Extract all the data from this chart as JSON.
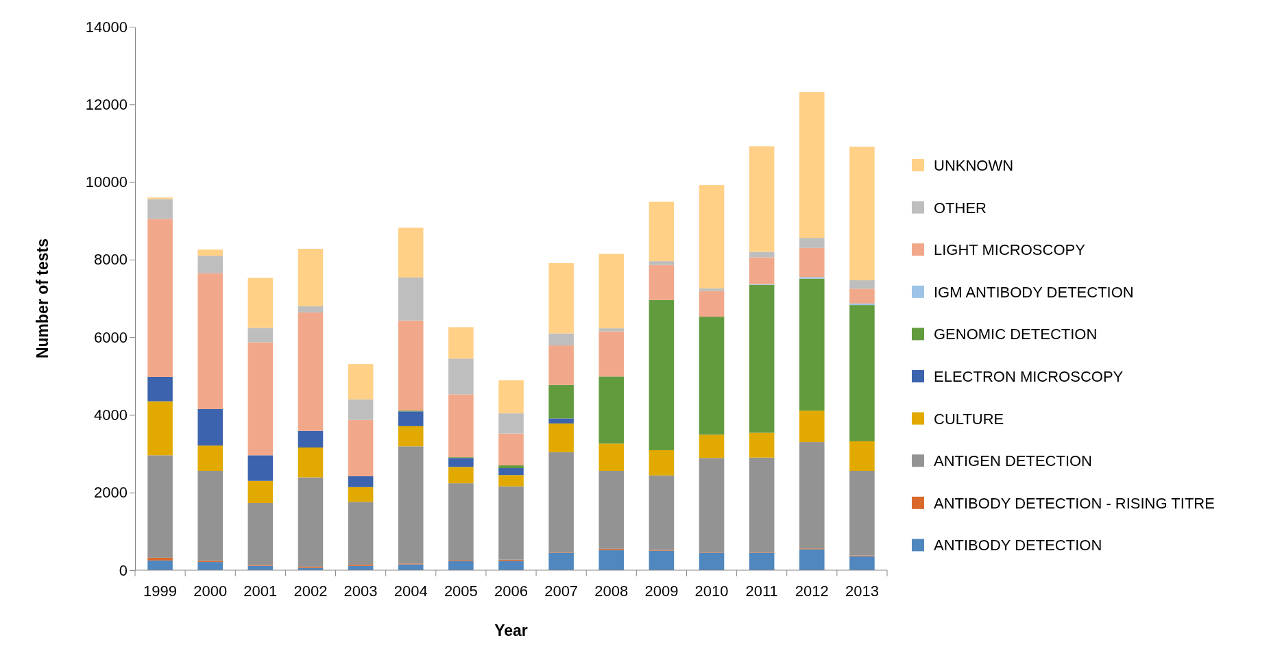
{
  "chart_data": {
    "type": "bar",
    "stacked": true,
    "xlabel": "Year",
    "ylabel": "Number of tests",
    "categories": [
      "1999",
      "2000",
      "2001",
      "2002",
      "2003",
      "2004",
      "2005",
      "2006",
      "2007",
      "2008",
      "2009",
      "2010",
      "2011",
      "2012",
      "2013"
    ],
    "ylim": [
      0,
      14000
    ],
    "yticks": [
      0,
      2000,
      4000,
      6000,
      8000,
      10000,
      12000,
      14000
    ],
    "legend": "right",
    "series": [
      {
        "name": "ANTIBODY DETECTION",
        "color": "#4f87be",
        "values": [
          250,
          210,
          110,
          60,
          110,
          150,
          230,
          240,
          450,
          520,
          500,
          450,
          450,
          540,
          360
        ]
      },
      {
        "name": "ANTIBODY DETECTION - RISING TITRE",
        "color": "#d9692b",
        "values": [
          70,
          30,
          20,
          30,
          30,
          20,
          20,
          30,
          10,
          30,
          20,
          10,
          10,
          20,
          20
        ]
      },
      {
        "name": "ANTIGEN DETECTION",
        "color": "#939393",
        "values": [
          2640,
          2320,
          1600,
          2300,
          1620,
          3020,
          1990,
          1890,
          2580,
          2010,
          1920,
          2430,
          2440,
          2740,
          2180
        ]
      },
      {
        "name": "CULTURE",
        "color": "#e2aa00",
        "values": [
          1390,
          650,
          570,
          770,
          380,
          520,
          420,
          290,
          740,
          700,
          650,
          600,
          640,
          810,
          760
        ]
      },
      {
        "name": "ELECTRON MICROSCOPY",
        "color": "#3c63ad",
        "values": [
          630,
          940,
          660,
          430,
          280,
          380,
          230,
          180,
          130,
          0,
          0,
          0,
          0,
          0,
          0
        ]
      },
      {
        "name": "GENOMIC DETECTION",
        "color": "#629a3e",
        "values": [
          0,
          0,
          0,
          0,
          0,
          20,
          20,
          70,
          860,
          1730,
          3870,
          3040,
          3810,
          3400,
          3510
        ]
      },
      {
        "name": "IGM ANTIBODY DETECTION",
        "color": "#9dc3e6",
        "values": [
          0,
          0,
          0,
          0,
          0,
          0,
          0,
          0,
          0,
          0,
          0,
          0,
          20,
          40,
          40
        ]
      },
      {
        "name": "LIGHT MICROSCOPY",
        "color": "#f1a88a",
        "values": [
          4070,
          3500,
          2910,
          3050,
          1450,
          2320,
          1620,
          820,
          1020,
          1160,
          900,
          660,
          690,
          750,
          380
        ]
      },
      {
        "name": "OTHER",
        "color": "#bebebe",
        "values": [
          510,
          450,
          370,
          160,
          530,
          1110,
          920,
          520,
          310,
          80,
          100,
          70,
          140,
          260,
          220
        ]
      },
      {
        "name": "UNKNOWN",
        "color": "#ffd086",
        "values": [
          40,
          160,
          1290,
          1480,
          910,
          1280,
          810,
          850,
          1810,
          1920,
          1530,
          2660,
          2720,
          3760,
          3440
        ]
      }
    ]
  }
}
